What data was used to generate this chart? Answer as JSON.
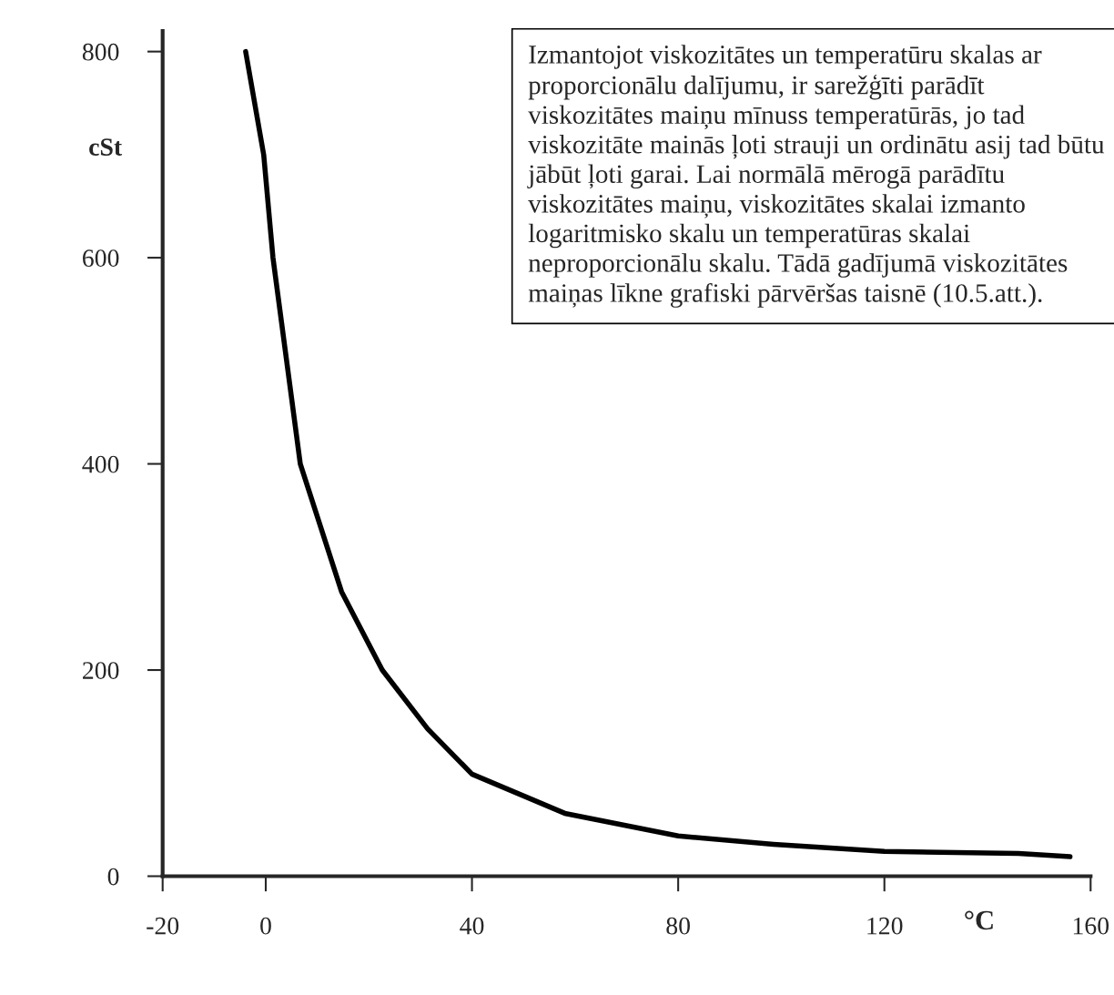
{
  "chart_data": {
    "type": "line",
    "xlabel": "°C",
    "ylabel": "cSt",
    "x": [
      -3.9,
      -0.4,
      1.4,
      6.7,
      14.7,
      22.6,
      31.4,
      40,
      58,
      80,
      98.5,
      120,
      146,
      156
    ],
    "series": [
      {
        "color": "#000000",
        "values": [
          800,
          700,
          600,
          400,
          276,
          200,
          143,
          99,
          61,
          39,
          31,
          24,
          22,
          19
        ]
      }
    ],
    "xlim": [
      -20,
      160
    ],
    "ylim": [
      0,
      820
    ],
    "xticks": [
      -20,
      0,
      40,
      80,
      120,
      160
    ],
    "yticks": [
      0,
      200,
      400,
      600,
      800
    ],
    "grid": false,
    "marker": "none",
    "line_style": "solid",
    "annotations": [
      "Izmantojot viskozitātes un temperatūru skalas ar proporcionālu dalījumu, ir sarežģīti parādīt viskozitātes maiņu mīnuss temperatūrās, jo tad viskozitāte mainās ļoti strauji un ordinātu asij tad būtu jābūt ļoti garai. Lai normālā mērogā parādītu viskozitātes maiņu, viskozitātes skalai izmanto logaritmisko skalu un temperatūras skalai neproporcionālu skalu. Tādā gadījumā viskozitātes maiņas līkne grafiski pārvēršas taisnē (10.5.att.)."
    ]
  }
}
